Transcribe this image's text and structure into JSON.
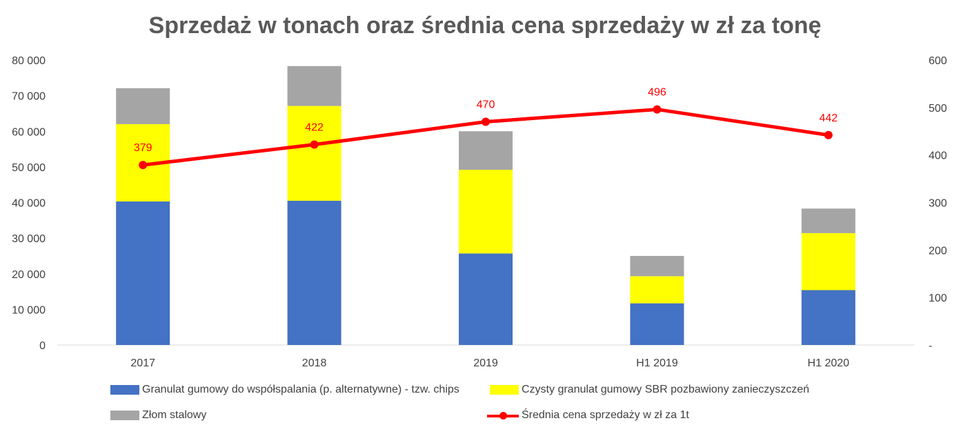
{
  "chart_data": {
    "type": "bar",
    "title": "Sprzedaż w tonach oraz średnia cena sprzedaży w zł za tonę",
    "categories": [
      "2017",
      "2018",
      "2019",
      "H1 2019",
      "H1 2020"
    ],
    "stacked": true,
    "series": [
      {
        "name": "Granulat gumowy do współspalania (p. alternatywne) - tzw. chips",
        "axis": "left",
        "color": "#4472c4",
        "values": [
          40300,
          40500,
          25700,
          11700,
          15400
        ]
      },
      {
        "name": "Czysty granulat gumowy SBR pozbawiony zanieczyszczeń",
        "axis": "left",
        "color": "#ffff00",
        "values": [
          21700,
          26600,
          23500,
          7600,
          16000
        ]
      },
      {
        "name": "Złom stalowy",
        "axis": "left",
        "color": "#a5a5a5",
        "values": [
          10100,
          11200,
          10800,
          5700,
          6900
        ]
      },
      {
        "name": "Średnia cena sprzedaży w zł za 1t",
        "axis": "right",
        "type": "line",
        "color": "#ff0000",
        "values": [
          379,
          422,
          470,
          496,
          442
        ]
      }
    ],
    "y_left": {
      "ylim": [
        0,
        80000
      ],
      "ticks": [
        0,
        10000,
        20000,
        30000,
        40000,
        50000,
        60000,
        70000,
        80000
      ],
      "tick_labels": [
        "0",
        "10 000",
        "20 000",
        "30 000",
        "40 000",
        "50 000",
        "60 000",
        "70 000",
        "80 000"
      ]
    },
    "y_right": {
      "ylim": [
        0,
        600
      ],
      "ticks": [
        0,
        100,
        200,
        300,
        400,
        500,
        600
      ],
      "tick_labels": [
        "-",
        "100",
        "200",
        "300",
        "400",
        "500",
        "600"
      ]
    },
    "grid": false,
    "legend_position": "bottom",
    "data_labels": [
      "379",
      "422",
      "470",
      "496",
      "442"
    ]
  }
}
